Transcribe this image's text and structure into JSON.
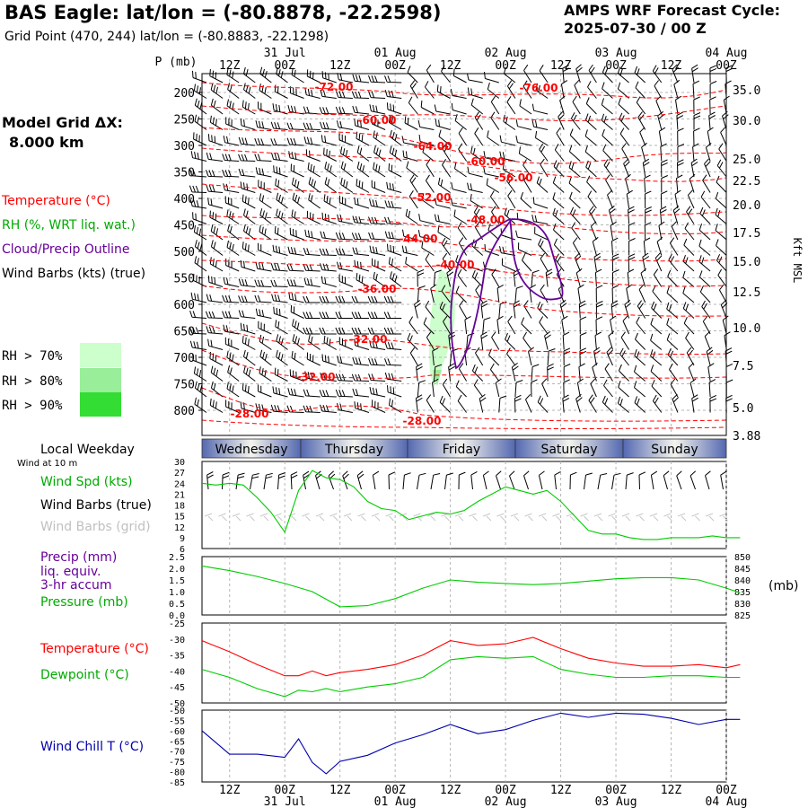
{
  "header": {
    "title": "BAS Eagle:  lat/lon = (-80.8878, -22.2598)",
    "subtitle": "Grid Point (470, 244) lat/lon = (-80.8883, -22.1298)",
    "cycle_line1": "AMPS WRF Forecast Cycle:",
    "cycle_line2": "2025-07-30 / 00  Z",
    "grid_label": "Model Grid ΔX:",
    "grid_value": "8.000 km"
  },
  "legend": {
    "temperature": "Temperature (°C)",
    "rh": "RH (%, WRT liq. wat.)",
    "cloud": "Cloud/Precip Outline",
    "wind": "Wind Barbs (kts) (true)",
    "rh_bins": [
      {
        "label": "RH > 70%",
        "color": "#ccffcc"
      },
      {
        "label": "RH > 80%",
        "color": "#99ee99"
      },
      {
        "label": "RH > 90%",
        "color": "#33dd33"
      }
    ]
  },
  "colors": {
    "temperature": "#ff0000",
    "dewpoint": "#00cc00",
    "cloud": "#660099",
    "wind_chill": "#0000aa",
    "wind_true": "#000000",
    "wind_grid": "#c8c8c8"
  },
  "chart_data": [
    {
      "type": "contour",
      "name": "time-height cross section",
      "ylabel": "P (mb)",
      "ylabel_right": "Kft MSL",
      "pressure_ticks": [
        200,
        250,
        300,
        350,
        400,
        450,
        500,
        550,
        600,
        650,
        700,
        750,
        800
      ],
      "height_ticks": [
        "35.0",
        "30.0",
        "25.0",
        "22.5",
        "20.0",
        "17.5",
        "15.0",
        "12.5",
        "10.0",
        "7.5",
        "5.0",
        "3.88"
      ],
      "time_top_labels": [
        "12Z",
        "00Z",
        "12Z",
        "00Z",
        "12Z",
        "00Z",
        "12Z",
        "00Z",
        "12Z",
        "00Z"
      ],
      "date_labels": [
        "31 Jul",
        "01 Aug",
        "02 Aug",
        "03 Aug",
        "04 Aug"
      ],
      "temperature_labels": [
        "-72.00",
        "-76.00",
        "-60.00",
        "-64.00",
        "-60.00",
        "-56.00",
        "-52.00",
        "-48.00",
        "-44.00",
        "-40.00",
        "-36.00",
        "-32.00",
        "-32.00",
        "-28.00",
        "-28.00"
      ]
    },
    {
      "type": "line",
      "name": "wind speed at 10 m",
      "panel_label": "Local Weekday",
      "sublabel": "Wind at 10 m",
      "weekdays": [
        "Wednesday",
        "Thursday",
        "Friday",
        "Saturday",
        "Sunday"
      ],
      "labels": [
        "Wind Spd (kts)",
        "Wind Barbs (true)",
        "Wind Barbs (grid)"
      ],
      "ylim": [
        6,
        30
      ],
      "yticks": [
        6,
        9,
        12,
        15,
        18,
        21,
        24,
        27,
        30
      ],
      "x": [
        0,
        3,
        6,
        9,
        12,
        15,
        18,
        21,
        24,
        27,
        30,
        33,
        36,
        39,
        42,
        45,
        48,
        51,
        54,
        57,
        60,
        63,
        66,
        69,
        72,
        75,
        78,
        81,
        84,
        87,
        90,
        93,
        96,
        99,
        102,
        105,
        108,
        111,
        114,
        117
      ],
      "values": [
        24,
        23.5,
        24,
        23.5,
        20,
        16,
        10.5,
        22,
        27.5,
        25.5,
        25,
        23,
        19,
        17,
        16.5,
        14,
        15,
        16,
        15.5,
        16.5,
        19,
        21,
        23,
        22,
        21,
        22,
        19,
        15,
        11,
        10,
        10,
        9,
        8.5,
        8.5,
        9,
        9,
        9,
        9.5,
        9,
        9
      ]
    },
    {
      "type": "line",
      "name": "precip and pressure",
      "labels": [
        "Precip (mm)",
        "liq. equiv.",
        "3-hr accum",
        "Pressure (mb)"
      ],
      "ylabel_right": "(mb)",
      "ylim_precip": [
        0,
        2.5
      ],
      "yticks_precip": [
        "0.0",
        "0.5",
        "1.0",
        "1.5",
        "2.0",
        "2.5"
      ],
      "ylim_pressure": [
        825,
        850
      ],
      "yticks_pressure": [
        "825",
        "830",
        "835",
        "840",
        "845",
        "850"
      ],
      "x": [
        0,
        6,
        12,
        18,
        24,
        30,
        36,
        42,
        48,
        54,
        60,
        66,
        72,
        78,
        84,
        90,
        96,
        102,
        108,
        114,
        117
      ],
      "pressure": [
        846,
        844,
        841.5,
        838.5,
        835,
        828.5,
        829,
        832,
        836.5,
        840,
        839,
        838.5,
        838,
        838.5,
        839.5,
        840.5,
        841,
        841,
        840,
        836.5,
        834.5
      ]
    },
    {
      "type": "line",
      "name": "temperature and dewpoint",
      "labels": [
        "Temperature (°C)",
        "Dewpoint (°C)"
      ],
      "ylim": [
        -50,
        -25
      ],
      "yticks": [
        -50,
        -45,
        -40,
        -35,
        -30,
        -25
      ],
      "x": [
        0,
        6,
        12,
        18,
        21,
        24,
        27,
        30,
        36,
        42,
        48,
        54,
        60,
        66,
        72,
        78,
        84,
        90,
        96,
        102,
        108,
        114,
        117
      ],
      "series": [
        {
          "name": "Temperature (°C)",
          "values": [
            -30.5,
            -34,
            -38,
            -41.5,
            -41.5,
            -40,
            -41.5,
            -40.5,
            -39.5,
            -38,
            -35,
            -30.5,
            -32,
            -31.5,
            -29.5,
            -33,
            -36,
            -37.5,
            -38.5,
            -38.5,
            -38,
            -39,
            -38
          ]
        },
        {
          "name": "Dewpoint (°C)",
          "values": [
            -39.5,
            -42,
            -45.5,
            -48,
            -46,
            -46.5,
            -45.5,
            -46.5,
            -45,
            -44,
            -42,
            -36.5,
            -35.5,
            -36,
            -35.5,
            -39.5,
            -41,
            -42,
            -42,
            -41.5,
            -41.5,
            -42,
            -42
          ]
        }
      ]
    },
    {
      "type": "line",
      "name": "wind chill temperature",
      "labels": [
        "Wind Chill T (°C)"
      ],
      "ylim": [
        -85,
        -50
      ],
      "yticks": [
        -85,
        -80,
        -75,
        -70,
        -65,
        -60,
        -55,
        -50
      ],
      "x": [
        0,
        6,
        12,
        18,
        21,
        24,
        27,
        30,
        36,
        42,
        48,
        54,
        60,
        66,
        72,
        78,
        84,
        90,
        96,
        102,
        108,
        114,
        117
      ],
      "values": [
        -60,
        -71.5,
        -71.5,
        -73,
        -64,
        -75.5,
        -81,
        -75,
        -72,
        -66,
        -62,
        -57,
        -61.5,
        -59.5,
        -55,
        -51.5,
        -53.5,
        -51.5,
        -52,
        -54,
        -57,
        -54.5,
        -54.5
      ],
      "time_bottom_labels": [
        "12Z",
        "00Z",
        "12Z",
        "00Z",
        "12Z",
        "00Z",
        "12Z",
        "00Z",
        "12Z",
        "00Z"
      ],
      "date_labels": [
        "31 Jul",
        "01 Aug",
        "02 Aug",
        "03 Aug",
        "04 Aug"
      ]
    }
  ]
}
